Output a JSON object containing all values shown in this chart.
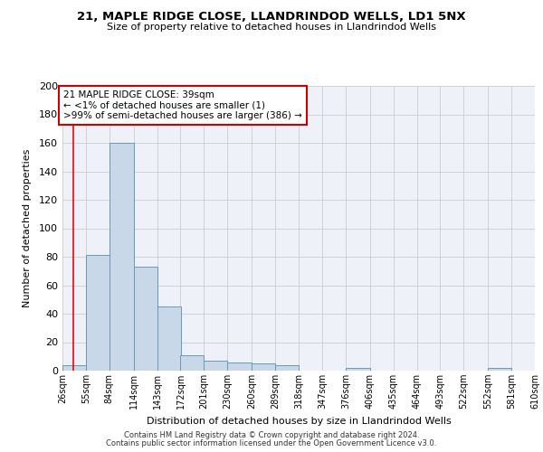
{
  "title": "21, MAPLE RIDGE CLOSE, LLANDRINDOD WELLS, LD1 5NX",
  "subtitle": "Size of property relative to detached houses in Llandrindod Wells",
  "xlabel": "Distribution of detached houses by size in Llandrindod Wells",
  "ylabel": "Number of detached properties",
  "footnote1": "Contains HM Land Registry data © Crown copyright and database right 2024.",
  "footnote2": "Contains public sector information licensed under the Open Government Licence v3.0.",
  "bar_edges": [
    26,
    55,
    84,
    114,
    143,
    172,
    201,
    230,
    260,
    289,
    318,
    347,
    376,
    406,
    435,
    464,
    493,
    522,
    552,
    581,
    610
  ],
  "bar_heights": [
    4,
    81,
    160,
    73,
    45,
    11,
    7,
    6,
    5,
    4,
    0,
    0,
    2,
    0,
    0,
    0,
    0,
    0,
    2,
    0,
    0
  ],
  "bar_color": "#c8d8e8",
  "bar_edge_color": "#6699bb",
  "grid_color": "#cccccc",
  "bg_color": "#eef2f8",
  "red_line_x": 39,
  "annotation_text": "21 MAPLE RIDGE CLOSE: 39sqm\n← <1% of detached houses are smaller (1)\n>99% of semi-detached houses are larger (386) →",
  "annotation_box_color": "#ffffff",
  "annotation_box_edge_color": "#cc0000",
  "ylim": [
    0,
    200
  ],
  "yticks": [
    0,
    20,
    40,
    60,
    80,
    100,
    120,
    140,
    160,
    180,
    200
  ],
  "tick_labels": [
    "26sqm",
    "55sqm",
    "84sqm",
    "114sqm",
    "143sqm",
    "172sqm",
    "201sqm",
    "230sqm",
    "260sqm",
    "289sqm",
    "318sqm",
    "347sqm",
    "376sqm",
    "406sqm",
    "435sqm",
    "464sqm",
    "493sqm",
    "522sqm",
    "552sqm",
    "581sqm",
    "610sqm"
  ]
}
